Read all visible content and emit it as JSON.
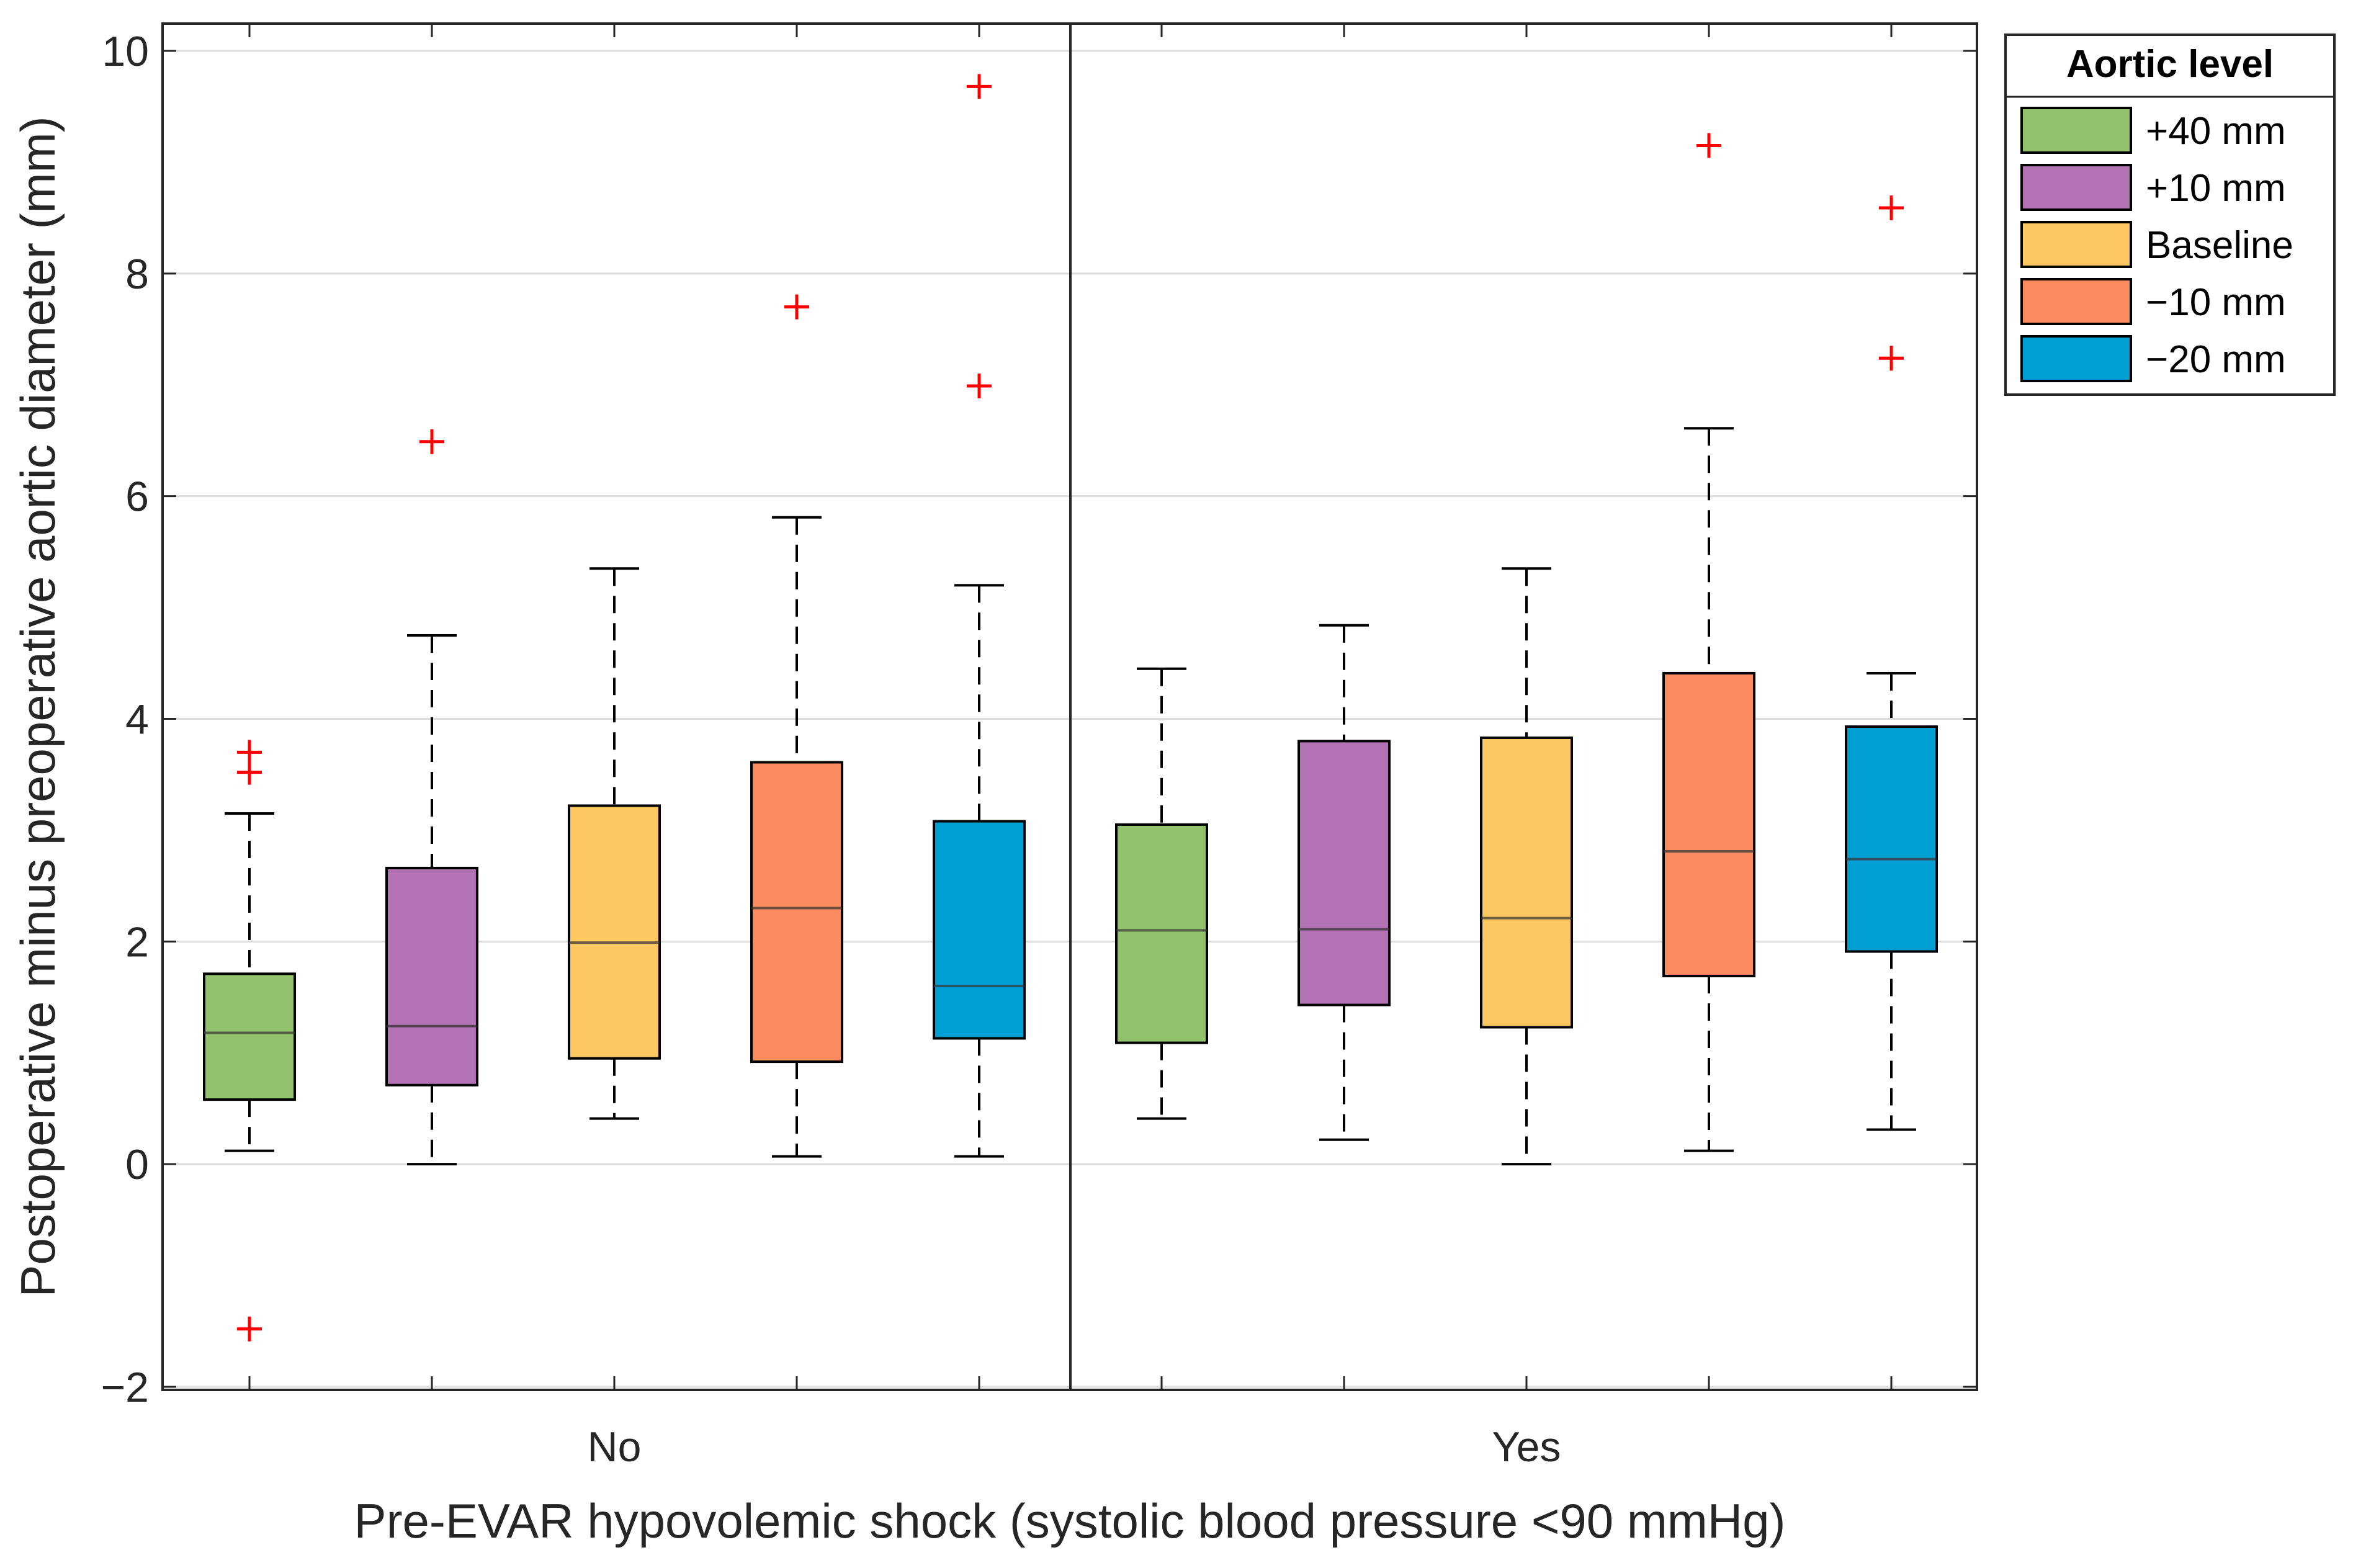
{
  "chart_data": {
    "type": "box",
    "title": "",
    "xlabel": "Pre-EVAR hypovolemic shock (systolic blood pressure <90 mmHg)",
    "ylabel": "Postoperative minus preoperative aortic diameter (mm)",
    "ylim": [
      -2,
      10
    ],
    "yticks": [
      -2,
      0,
      2,
      4,
      6,
      8,
      10
    ],
    "grid": true,
    "groups": [
      "No",
      "Yes"
    ],
    "legend": {
      "title": "Aortic level",
      "position": "outside-top-right"
    },
    "series": [
      {
        "name": "+40 mm",
        "color": "#92C36C"
      },
      {
        "name": "+10 mm",
        "color": "#B272B4"
      },
      {
        "name": "Baseline",
        "color": "#FDC862"
      },
      {
        "name": "−10 mm",
        "color": "#F98B5E"
      },
      {
        "name": "−20 mm",
        "color": "#009FD4"
      }
    ],
    "boxes": [
      {
        "group": "No",
        "series": "+40 mm",
        "whisker_low": 0.12,
        "q1": 0.58,
        "median": 1.18,
        "q3": 1.71,
        "whisker_high": 3.15,
        "outliers": [
          3.52,
          3.7,
          -1.48
        ]
      },
      {
        "group": "No",
        "series": "+10 mm",
        "whisker_low": 0.0,
        "q1": 0.71,
        "median": 1.24,
        "q3": 2.66,
        "whisker_high": 4.75,
        "outliers": [
          6.49
        ]
      },
      {
        "group": "No",
        "series": "Baseline",
        "whisker_low": 0.41,
        "q1": 0.95,
        "median": 1.99,
        "q3": 3.22,
        "whisker_high": 5.35,
        "outliers": []
      },
      {
        "group": "No",
        "series": "−10 mm",
        "whisker_low": 0.07,
        "q1": 0.92,
        "median": 2.3,
        "q3": 3.61,
        "whisker_high": 5.81,
        "outliers": [
          7.7
        ]
      },
      {
        "group": "No",
        "series": "−20 mm",
        "whisker_low": 0.07,
        "q1": 1.13,
        "median": 1.6,
        "q3": 3.08,
        "whisker_high": 5.2,
        "outliers": [
          6.99,
          9.68
        ]
      },
      {
        "group": "Yes",
        "series": "+40 mm",
        "whisker_low": 0.41,
        "q1": 1.09,
        "median": 2.1,
        "q3": 3.05,
        "whisker_high": 4.45,
        "outliers": []
      },
      {
        "group": "Yes",
        "series": "+10 mm",
        "whisker_low": 0.22,
        "q1": 1.43,
        "median": 2.11,
        "q3": 3.8,
        "whisker_high": 4.84,
        "outliers": []
      },
      {
        "group": "Yes",
        "series": "Baseline",
        "whisker_low": 0.0,
        "q1": 1.23,
        "median": 2.21,
        "q3": 3.83,
        "whisker_high": 5.35,
        "outliers": []
      },
      {
        "group": "Yes",
        "series": "−10 mm",
        "whisker_low": 0.12,
        "q1": 1.69,
        "median": 2.81,
        "q3": 4.41,
        "whisker_high": 6.61,
        "outliers": [
          9.15
        ]
      },
      {
        "group": "Yes",
        "series": "−20 mm",
        "whisker_low": 0.31,
        "q1": 1.91,
        "median": 2.74,
        "q3": 3.93,
        "whisker_high": 4.41,
        "outliers": [
          7.24,
          8.59
        ]
      }
    ]
  }
}
